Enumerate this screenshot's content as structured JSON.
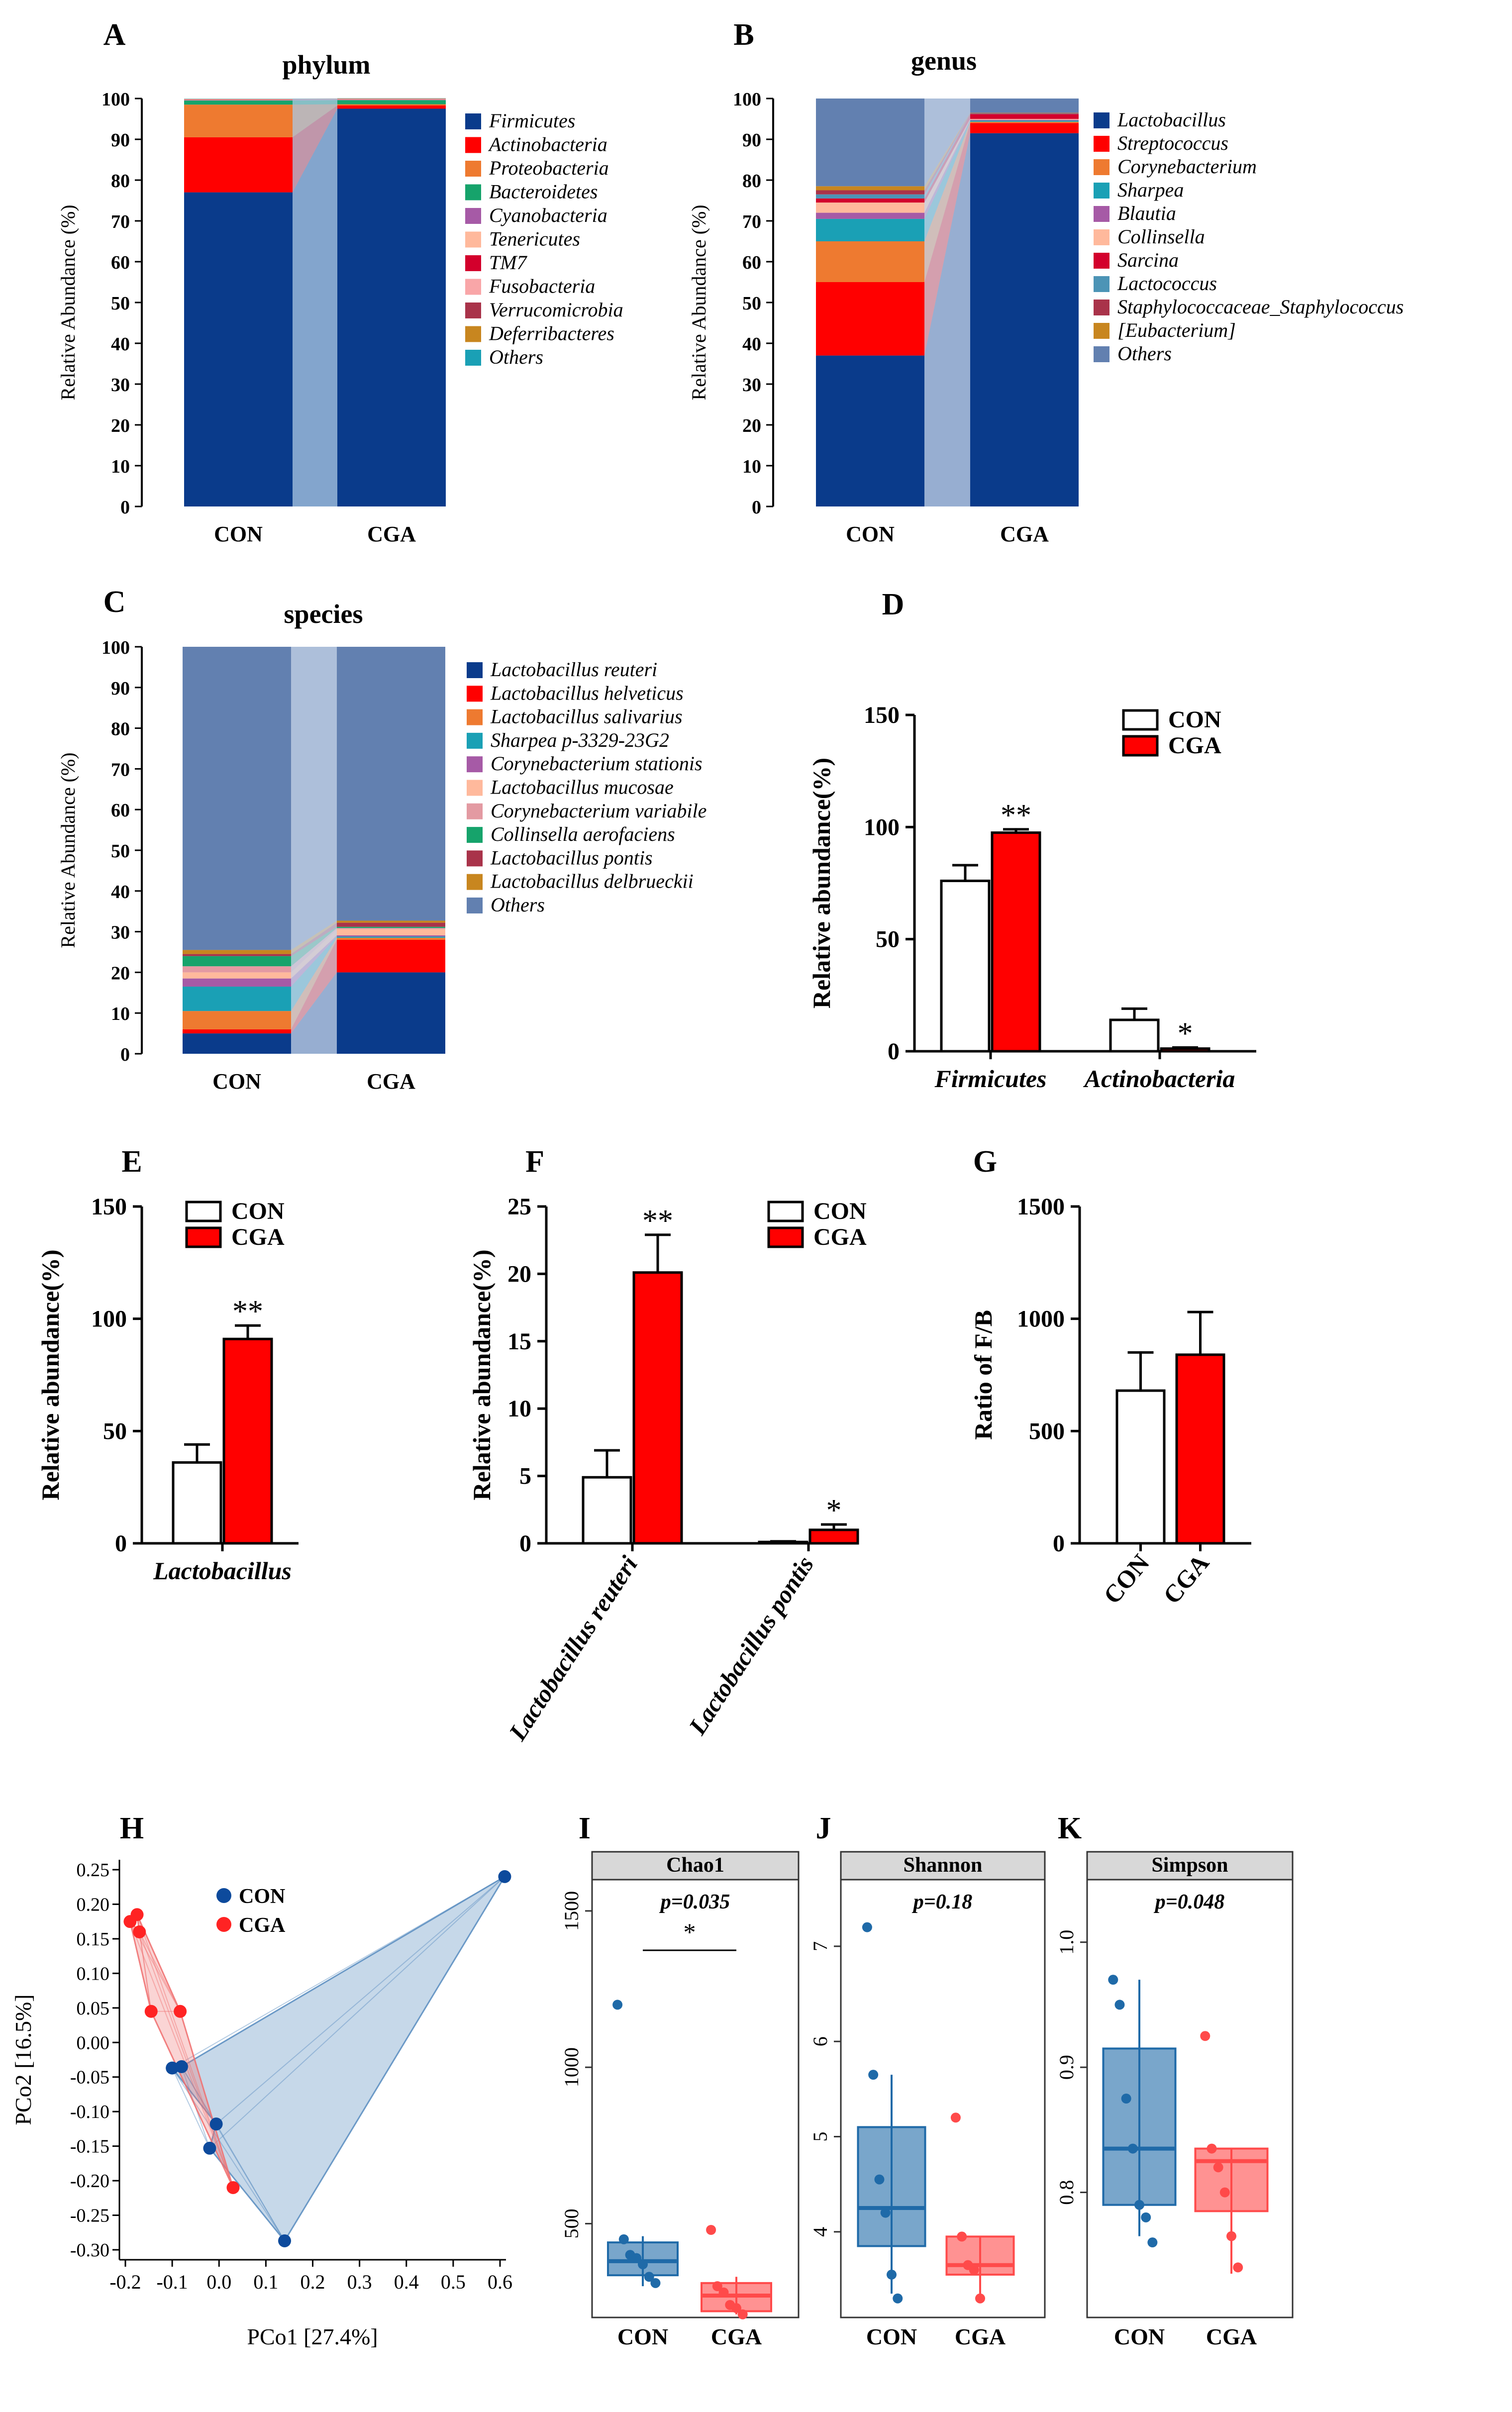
{
  "figure": {
    "panels": [
      "A",
      "B",
      "C",
      "D",
      "E",
      "F",
      "G",
      "H",
      "I",
      "J",
      "K"
    ]
  },
  "chart_data": [
    {
      "panel": "A",
      "type": "bar",
      "title": "phylum",
      "ylabel": "Relative Abundance (%)",
      "ylim": [
        0,
        100
      ],
      "yticks": [
        "0",
        "10",
        "20",
        "30",
        "40",
        "50",
        "60",
        "70",
        "80",
        "90",
        "100"
      ],
      "categories": [
        "CON",
        "CGA"
      ],
      "series": [
        {
          "name": "Firmicutes",
          "color": "#0a3b8b",
          "values": [
            77,
            97.5
          ]
        },
        {
          "name": "Actinobacteria",
          "color": "#ff0000",
          "values": [
            13.5,
            0.8
          ]
        },
        {
          "name": "Proteobacteria",
          "color": "#ee7a30",
          "values": [
            8,
            0.3
          ]
        },
        {
          "name": "Bacteroidetes",
          "color": "#16a36b",
          "values": [
            1,
            1
          ]
        },
        {
          "name": "Cyanobacteria",
          "color": "#a65aa6",
          "values": [
            0.1,
            0.1
          ]
        },
        {
          "name": "Tenericutes",
          "color": "#ffb99c",
          "values": [
            0.1,
            0.1
          ]
        },
        {
          "name": "TM7",
          "color": "#d3002c",
          "values": [
            0.05,
            0.05
          ]
        },
        {
          "name": "Fusobacteria",
          "color": "#f9a6a8",
          "values": [
            0.05,
            0.05
          ]
        },
        {
          "name": "Verrucomicrobia",
          "color": "#a9334a",
          "values": [
            0.05,
            0.05
          ]
        },
        {
          "name": "Deferribacteres",
          "color": "#c8861f",
          "values": [
            0.05,
            0.05
          ]
        },
        {
          "name": "Others",
          "color": "#1aa0b5",
          "values": [
            0.05,
            0.05
          ]
        }
      ]
    },
    {
      "panel": "B",
      "type": "bar",
      "title": "genus",
      "ylabel": "Relative Abundance (%)",
      "ylim": [
        0,
        100
      ],
      "yticks": [
        "0",
        "10",
        "20",
        "30",
        "40",
        "50",
        "60",
        "70",
        "80",
        "90",
        "100"
      ],
      "categories": [
        "CON",
        "CGA"
      ],
      "series": [
        {
          "name": "Lactobacillus",
          "color": "#0a3b8b",
          "values": [
            37,
            91.5
          ]
        },
        {
          "name": "Streptococcus",
          "color": "#ff0000",
          "values": [
            18,
            2.5
          ]
        },
        {
          "name": "Corynebacterium",
          "color": "#ee7a30",
          "values": [
            10,
            0.3
          ]
        },
        {
          "name": "Sharpea",
          "color": "#1aa0b5",
          "values": [
            5.5,
            0.3
          ]
        },
        {
          "name": "Blautia",
          "color": "#a65aa6",
          "values": [
            1.5,
            0.2
          ]
        },
        {
          "name": "Collinsella",
          "color": "#ffb99c",
          "values": [
            2.5,
            0.2
          ]
        },
        {
          "name": "Sarcina",
          "color": "#d3002c",
          "values": [
            1,
            1.2
          ]
        },
        {
          "name": "Lactococcus",
          "color": "#4c94b6",
          "values": [
            1,
            0.1
          ]
        },
        {
          "name": "Staphylococcaceae_Staphylococcus",
          "color": "#a9334a",
          "values": [
            1,
            0.1
          ]
        },
        {
          "name": "[Eubacterium]",
          "color": "#c8861f",
          "values": [
            1,
            0.1
          ]
        },
        {
          "name": "Others",
          "color": "#6280b0",
          "values": [
            21.5,
            3.5
          ]
        }
      ]
    },
    {
      "panel": "C",
      "type": "bar",
      "title": "species",
      "ylabel": "Relative Abundance (%)",
      "ylim": [
        0,
        100
      ],
      "yticks": [
        "0",
        "10",
        "20",
        "30",
        "40",
        "50",
        "60",
        "70",
        "80",
        "90",
        "100"
      ],
      "categories": [
        "CON",
        "CGA"
      ],
      "series": [
        {
          "name": "Lactobacillus reuteri",
          "color": "#0a3b8b",
          "values": [
            5,
            20
          ]
        },
        {
          "name": "Lactobacillus helveticus",
          "color": "#ff0000",
          "values": [
            1,
            8
          ]
        },
        {
          "name": "Lactobacillus salivarius",
          "color": "#ee7a30",
          "values": [
            4.5,
            0.5
          ]
        },
        {
          "name": "Sharpea p-3329-23G2",
          "color": "#1aa0b5",
          "values": [
            6,
            0.3
          ]
        },
        {
          "name": "Corynebacterium stationis",
          "color": "#a65aa6",
          "values": [
            2,
            0.3
          ]
        },
        {
          "name": "Lactobacillus mucosae",
          "color": "#ffb99c",
          "values": [
            1.5,
            1.5
          ]
        },
        {
          "name": "Corynebacterium variabile",
          "color": "#e39aa2",
          "values": [
            1.5,
            0.3
          ]
        },
        {
          "name": "Collinsella aerofaciens",
          "color": "#16a36b",
          "values": [
            2.5,
            0.3
          ]
        },
        {
          "name": "Lactobacillus pontis",
          "color": "#a9334a",
          "values": [
            0.5,
            1
          ]
        },
        {
          "name": "Lactobacillus delbrueckii",
          "color": "#c8861f",
          "values": [
            1,
            0.5
          ]
        },
        {
          "name": "Others",
          "color": "#6280b0",
          "values": [
            74.5,
            67.3
          ]
        }
      ]
    },
    {
      "panel": "D",
      "type": "bar",
      "ylabel": "Relative abundance(%)",
      "ylim": [
        0,
        150
      ],
      "yticks": [
        "0",
        "50",
        "100",
        "150"
      ],
      "categories": [
        "Firmicutes",
        "Actinobacteria"
      ],
      "series": [
        {
          "name": "CON",
          "color": "#ffffff",
          "values": [
            76,
            14
          ],
          "errors": [
            7,
            5
          ]
        },
        {
          "name": "CGA",
          "color": "#ff0000",
          "values": [
            97.5,
            1.2
          ],
          "errors": [
            1.5,
            0.5
          ]
        }
      ],
      "annotations": [
        "**",
        "*"
      ]
    },
    {
      "panel": "E",
      "type": "bar",
      "ylabel": "Relative abundance(%)",
      "ylim": [
        0,
        150
      ],
      "yticks": [
        "0",
        "50",
        "100",
        "150"
      ],
      "categories": [
        "Lactobacillus"
      ],
      "series": [
        {
          "name": "CON",
          "color": "#ffffff",
          "values": [
            36
          ],
          "errors": [
            8
          ]
        },
        {
          "name": "CGA",
          "color": "#ff0000",
          "values": [
            91
          ],
          "errors": [
            6
          ]
        }
      ],
      "annotations": [
        "**"
      ]
    },
    {
      "panel": "F",
      "type": "bar",
      "ylabel": "Relative abundance(%)",
      "ylim": [
        0,
        25
      ],
      "yticks": [
        "0",
        "5",
        "10",
        "15",
        "20",
        "25"
      ],
      "categories": [
        "Lactobacillus reuteri",
        "Lactobacillus pontis"
      ],
      "series": [
        {
          "name": "CON",
          "color": "#ffffff",
          "values": [
            4.9,
            0.1
          ],
          "errors": [
            2,
            0.05
          ]
        },
        {
          "name": "CGA",
          "color": "#ff0000",
          "values": [
            20.1,
            1
          ],
          "errors": [
            2.8,
            0.4
          ]
        }
      ],
      "annotations": [
        "**",
        "*"
      ]
    },
    {
      "panel": "G",
      "type": "bar",
      "ylabel": "Ratio of F/B",
      "ylim": [
        0,
        1500
      ],
      "yticks": [
        "0",
        "500",
        "1000",
        "1500"
      ],
      "categories": [
        "CON",
        "CGA"
      ],
      "values": [
        680,
        840
      ],
      "errors": [
        170,
        190
      ],
      "colors": [
        "#ffffff",
        "#ff0000"
      ]
    },
    {
      "panel": "H",
      "type": "scatter",
      "xlabel": "PCo1 [27.4%]",
      "ylabel": "PCo2 [16.5%]",
      "xlim": [
        -0.2,
        0.6
      ],
      "ylim": [
        -0.3,
        0.25
      ],
      "xticks": [
        "-0.2",
        "-0.1",
        "0.0",
        "0.1",
        "0.2",
        "0.3",
        "0.4",
        "0.5",
        "0.6"
      ],
      "yticks": [
        "0.25",
        "0.20",
        "0.15",
        "0.10",
        "0.05",
        "0.00",
        "-0.05",
        "-0.10",
        "-0.15",
        "-0.20",
        "-0.25",
        "-0.30"
      ],
      "series": [
        {
          "name": "CON",
          "color": "#0d4a9c",
          "points": [
            [
              -0.08,
              -0.035
            ],
            [
              -0.1,
              -0.037
            ],
            [
              -0.006,
              -0.118
            ],
            [
              -0.02,
              -0.153
            ],
            [
              0.14,
              -0.287
            ],
            [
              0.61,
              0.24
            ]
          ]
        },
        {
          "name": "CGA",
          "color": "#ff2323",
          "points": [
            [
              -0.19,
              0.175
            ],
            [
              -0.175,
              0.185
            ],
            [
              -0.17,
              0.16
            ],
            [
              -0.145,
              0.045
            ],
            [
              -0.083,
              0.045
            ],
            [
              0.03,
              -0.21
            ]
          ]
        }
      ]
    },
    {
      "panel": "I",
      "type": "box",
      "title": "Chao1",
      "pvalue": "p=0.035",
      "significance": "*",
      "ylim": [
        200,
        1600
      ],
      "yticks": [
        "500",
        "1000",
        "1500"
      ],
      "categories": [
        "CON",
        "CGA"
      ],
      "boxes": [
        {
          "name": "CON",
          "color": "#1f6aa8",
          "min": 300,
          "q1": 335,
          "median": 380,
          "q3": 440,
          "max": 460,
          "points": [
            1200,
            450,
            400,
            390,
            370,
            330,
            310
          ]
        },
        {
          "name": "CGA",
          "color": "#ff4a4a",
          "min": 210,
          "q1": 220,
          "median": 270,
          "q3": 310,
          "max": 330,
          "points": [
            480,
            300,
            280,
            240,
            230,
            210
          ]
        }
      ]
    },
    {
      "panel": "J",
      "type": "box",
      "title": "Shannon",
      "pvalue": "p=0.18",
      "ylim": [
        3.1,
        7.7
      ],
      "yticks": [
        "4",
        "5",
        "6",
        "7"
      ],
      "categories": [
        "CON",
        "CGA"
      ],
      "boxes": [
        {
          "name": "CON",
          "color": "#1f6aa8",
          "min": 3.35,
          "q1": 3.85,
          "median": 4.25,
          "q3": 5.1,
          "max": 5.65,
          "points": [
            7.2,
            5.65,
            4.55,
            4.2,
            3.55,
            3.3
          ]
        },
        {
          "name": "CGA",
          "color": "#ff4a4a",
          "min": 3.25,
          "q1": 3.55,
          "median": 3.65,
          "q3": 3.95,
          "max": 3.95,
          "points": [
            5.2,
            3.95,
            3.65,
            3.6,
            3.3
          ]
        }
      ]
    },
    {
      "panel": "K",
      "type": "box",
      "title": "Simpson",
      "pvalue": "p=0.048",
      "ylim": [
        0.7,
        1.05
      ],
      "yticks": [
        "0.8",
        "0.9",
        "1.0"
      ],
      "categories": [
        "CON",
        "CGA"
      ],
      "boxes": [
        {
          "name": "CON",
          "color": "#1f6aa8",
          "min": 0.765,
          "q1": 0.79,
          "median": 0.835,
          "q3": 0.915,
          "max": 0.97,
          "points": [
            0.97,
            0.95,
            0.875,
            0.835,
            0.79,
            0.78,
            0.76
          ]
        },
        {
          "name": "CGA",
          "color": "#ff4a4a",
          "min": 0.735,
          "q1": 0.785,
          "median": 0.825,
          "q3": 0.835,
          "max": 0.835,
          "points": [
            0.925,
            0.835,
            0.82,
            0.8,
            0.765,
            0.74
          ]
        }
      ]
    }
  ]
}
